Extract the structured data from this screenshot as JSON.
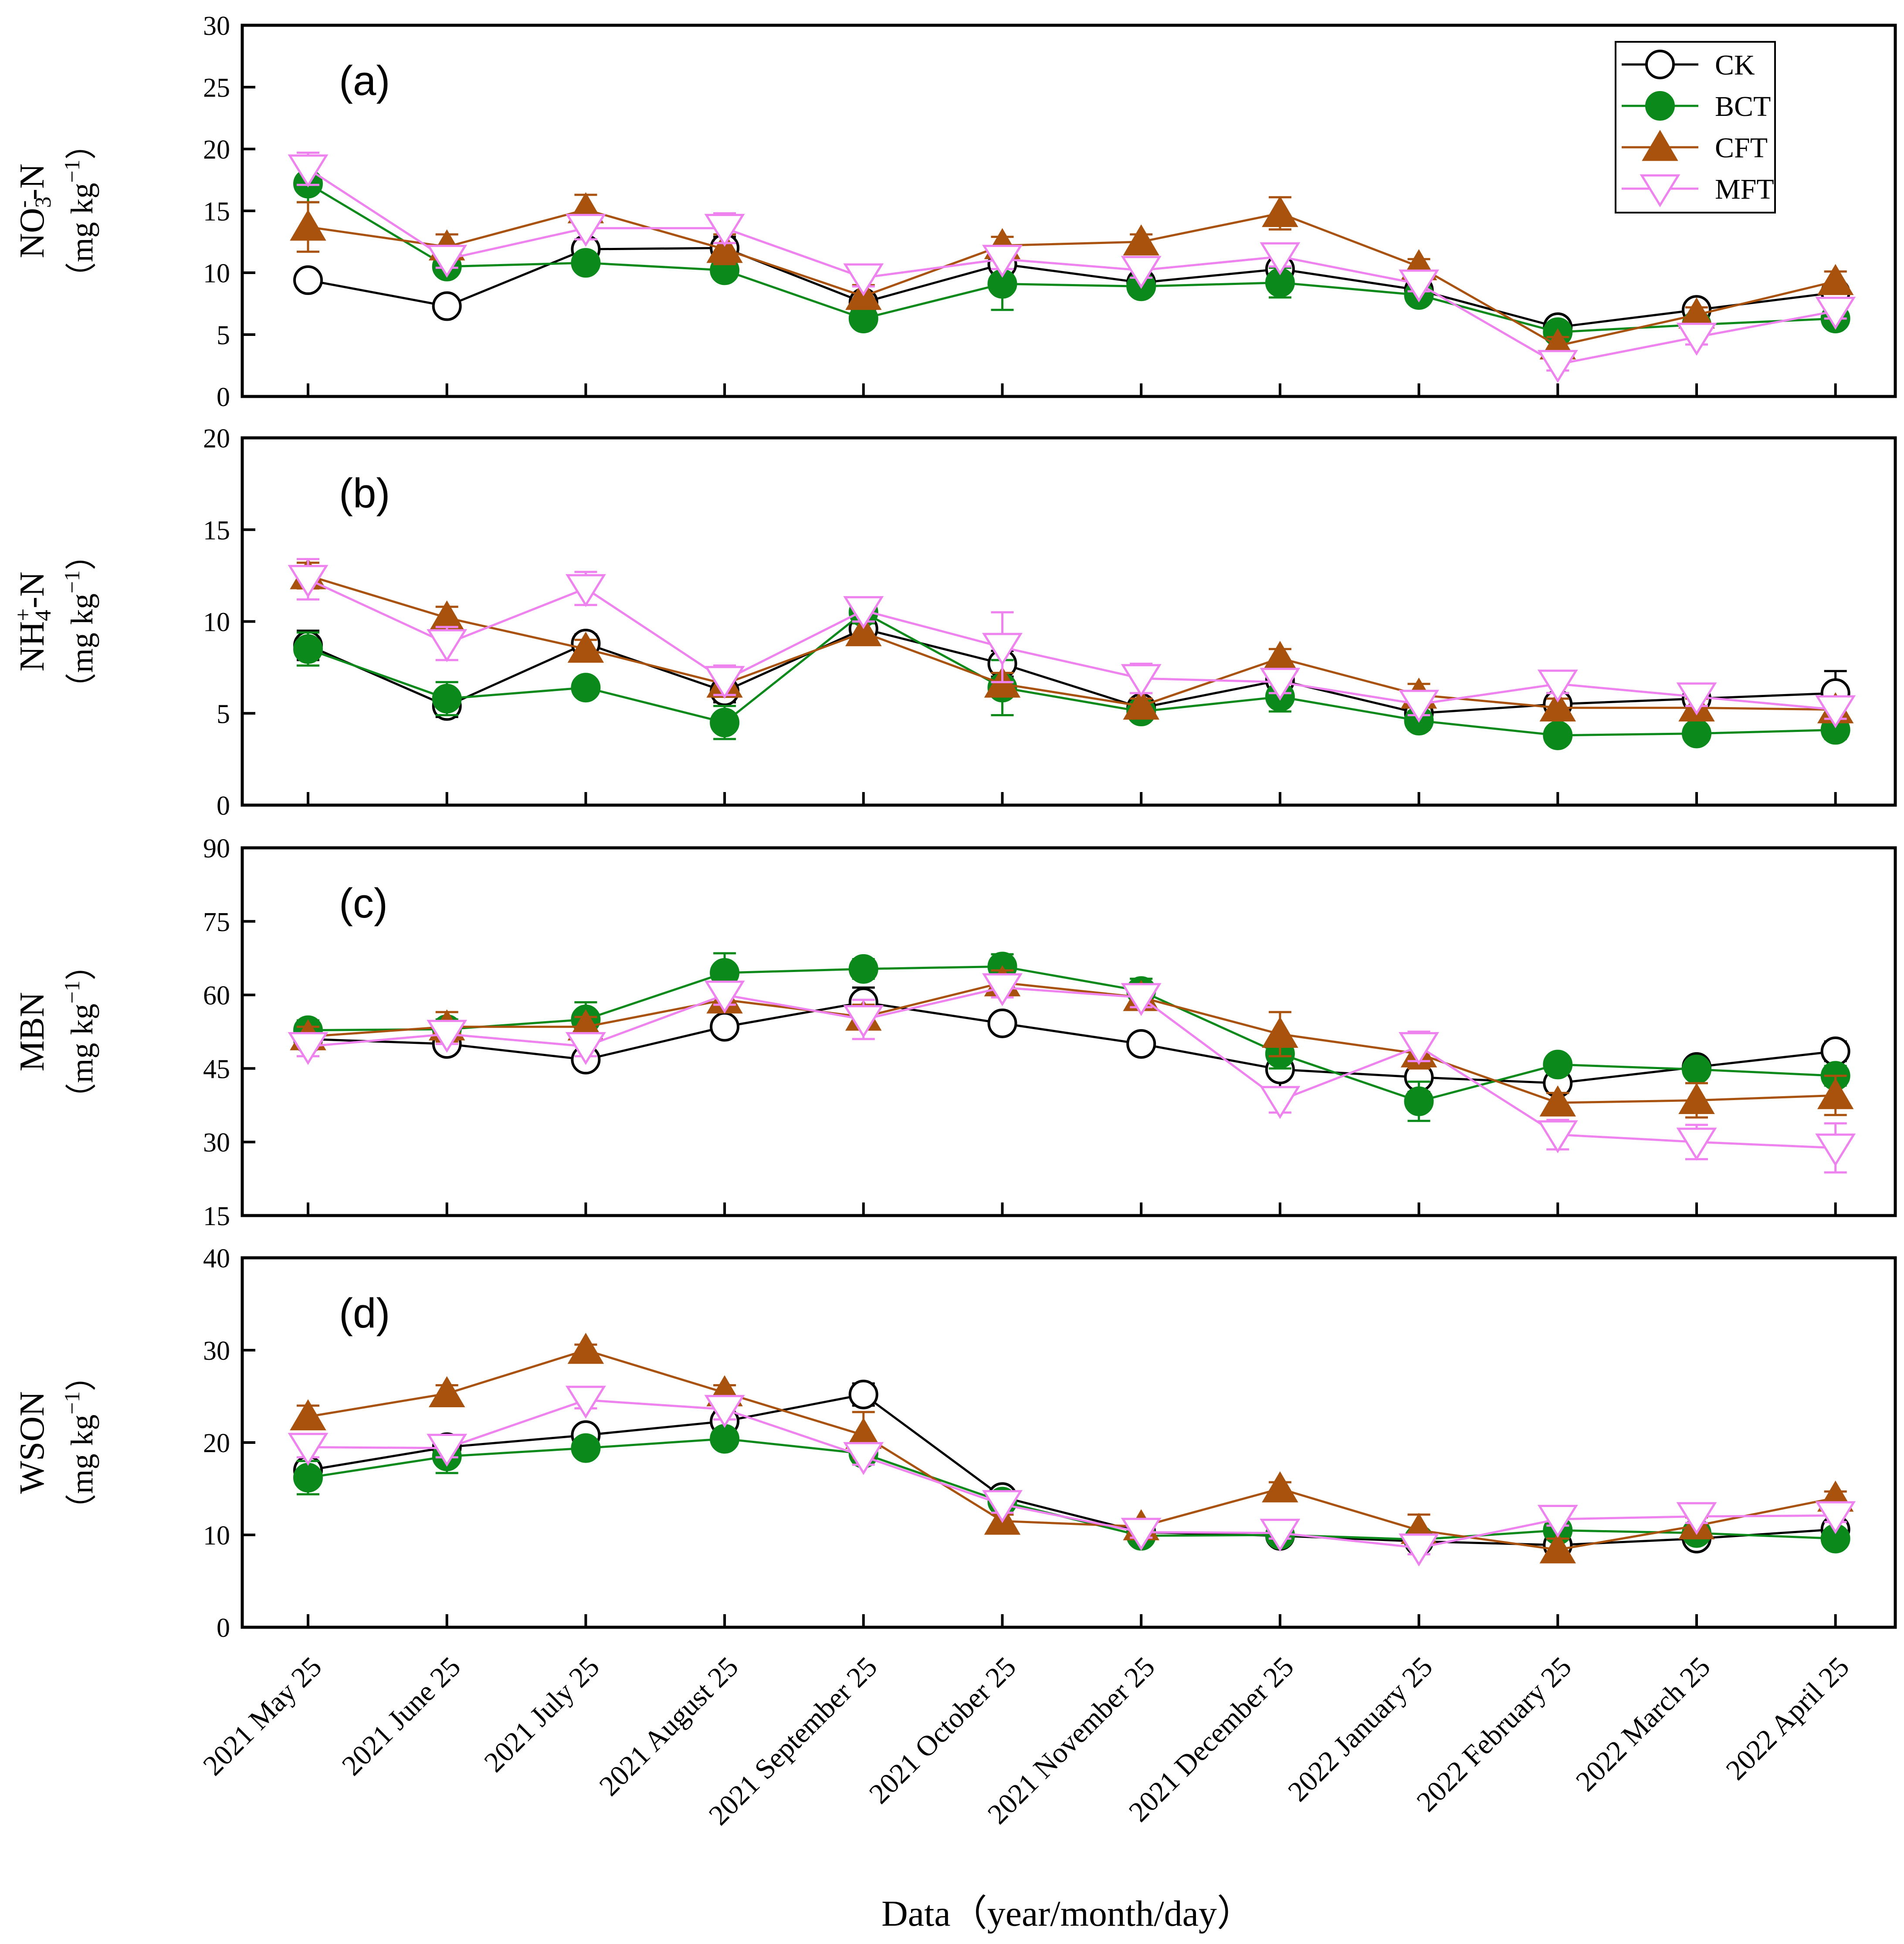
{
  "chart_data": {
    "type": "line",
    "xlabel": "Data（year/month/day）",
    "categories": [
      "2021 May 25",
      "2021 June 25",
      "2021 July 25",
      "2021 August 25",
      "2021 September 25",
      "2021 October 25",
      "2021 November 25",
      "2021 December 25",
      "2022 January 25",
      "2022 February 25",
      "2022 March 25",
      "2022 April 25"
    ],
    "legend": {
      "position": "top-right of panel (a)",
      "entries": [
        {
          "name": "CK",
          "marker": "open-circle",
          "color": "#000000"
        },
        {
          "name": "BCT",
          "marker": "filled-circle",
          "color": "#0b8a1b"
        },
        {
          "name": "CFT",
          "marker": "filled-triangle-up",
          "color": "#a8520e"
        },
        {
          "name": "MFT",
          "marker": "open-triangle-down",
          "color": "#ee82ee"
        }
      ]
    },
    "panels": [
      {
        "label": "(a)",
        "ylabel": "NO₃⁻-N",
        "ylabel_parts": {
          "base": "NO",
          "sub": "3",
          "sup": "-",
          "tail": "-N"
        },
        "yunit_parts": {
          "open": "（mg kg",
          "sup": "−1",
          "close": "）"
        },
        "ylim": [
          0,
          30
        ],
        "yticks": [
          0,
          5,
          10,
          15,
          20,
          25,
          30
        ],
        "series": [
          {
            "name": "CK",
            "values": [
              9.4,
              7.3,
              11.9,
              12.0,
              7.6,
              10.7,
              9.2,
              10.3,
              8.6,
              5.6,
              7.0,
              8.4
            ],
            "errors": [
              0.6,
              0.5,
              0.8,
              0.9,
              0.6,
              0.8,
              0.5,
              0.7,
              0.5,
              0.5,
              0.5,
              0.6
            ]
          },
          {
            "name": "BCT",
            "values": [
              17.2,
              10.5,
              10.8,
              10.2,
              6.3,
              9.1,
              8.9,
              9.2,
              8.2,
              5.2,
              5.8,
              6.3
            ],
            "errors": [
              1.5,
              0.7,
              0.6,
              0.7,
              0.5,
              2.1,
              0.6,
              1.2,
              0.5,
              0.5,
              0.5,
              0.5
            ]
          },
          {
            "name": "CFT",
            "values": [
              13.7,
              12.1,
              15.1,
              11.9,
              8.1,
              12.2,
              12.5,
              14.8,
              10.5,
              4.1,
              6.6,
              9.3
            ],
            "errors": [
              2.0,
              1.0,
              1.2,
              1.2,
              0.9,
              0.7,
              0.6,
              1.3,
              0.6,
              0.7,
              0.6,
              0.8
            ]
          },
          {
            "name": "MFT",
            "values": [
              18.4,
              11.1,
              13.6,
              13.6,
              9.6,
              11.1,
              10.2,
              11.3,
              9.1,
              2.6,
              4.8,
              6.9
            ],
            "errors": [
              1.3,
              0.7,
              0.9,
              1.2,
              0.7,
              0.8,
              0.6,
              0.8,
              0.6,
              0.5,
              0.6,
              0.6
            ]
          }
        ]
      },
      {
        "label": "(b)",
        "ylabel": "NH₄⁺-N",
        "ylabel_parts": {
          "base": "NH",
          "sub": "4",
          "sup": "+",
          "tail": "-N"
        },
        "yunit_parts": {
          "open": "（mg kg",
          "sup": "−1",
          "close": "）"
        },
        "ylim": [
          0,
          20
        ],
        "yticks": [
          0,
          5,
          10,
          15,
          20
        ],
        "series": [
          {
            "name": "CK",
            "values": [
              8.7,
              5.4,
              8.8,
              6.2,
              9.6,
              7.7,
              5.3,
              6.8,
              5.0,
              5.5,
              5.8,
              6.1
            ],
            "errors": [
              0.8,
              0.6,
              0.5,
              0.6,
              0.6,
              0.7,
              0.4,
              0.6,
              0.5,
              0.6,
              0.8,
              1.2
            ]
          },
          {
            "name": "BCT",
            "values": [
              8.5,
              5.8,
              6.4,
              4.5,
              10.5,
              6.4,
              5.1,
              5.9,
              4.6,
              3.8,
              3.9,
              4.1
            ],
            "errors": [
              0.9,
              0.9,
              0.4,
              0.9,
              0.6,
              1.5,
              0.4,
              0.8,
              0.5,
              0.4,
              0.4,
              0.5
            ]
          },
          {
            "name": "CFT",
            "values": [
              12.5,
              10.2,
              8.5,
              6.6,
              9.4,
              6.6,
              5.4,
              8.0,
              6.0,
              5.3,
              5.3,
              5.2
            ],
            "errors": [
              0.7,
              0.6,
              0.5,
              0.7,
              0.6,
              0.6,
              0.4,
              0.5,
              0.6,
              0.5,
              0.5,
              0.5
            ]
          },
          {
            "name": "MFT",
            "values": [
              12.3,
              8.8,
              11.8,
              6.8,
              10.6,
              8.6,
              6.9,
              6.7,
              5.5,
              6.6,
              5.9,
              5.2
            ],
            "errors": [
              1.1,
              0.9,
              0.9,
              0.8,
              0.6,
              1.9,
              0.8,
              0.6,
              0.6,
              0.5,
              0.5,
              0.5
            ]
          }
        ]
      },
      {
        "label": "(c)",
        "ylabel": "MBN",
        "yunit_parts": {
          "open": "（mg kg",
          "sup": "−1",
          "close": "）"
        },
        "ylim": [
          15,
          90
        ],
        "yticks": [
          15,
          30,
          45,
          60,
          75,
          90
        ],
        "series": [
          {
            "name": "CK",
            "values": [
              51.0,
              50.0,
              46.8,
              53.5,
              58.5,
              54.2,
              50.0,
              44.8,
              43.2,
              42.0,
              45.3,
              48.5
            ],
            "errors": [
              2.0,
              1.5,
              1.5,
              1.5,
              3.0,
              1.5,
              1.5,
              4.0,
              3.0,
              2.0,
              1.5,
              2.0
            ]
          },
          {
            "name": "BCT",
            "values": [
              52.8,
              53.0,
              55.0,
              64.5,
              65.3,
              65.8,
              60.8,
              48.0,
              38.3,
              45.8,
              44.8,
              43.5
            ],
            "errors": [
              2.0,
              2.0,
              3.5,
              4.0,
              2.0,
              2.5,
              2.5,
              3.0,
              4.0,
              1.5,
              1.5,
              2.0
            ]
          },
          {
            "name": "CFT",
            "values": [
              51.5,
              53.5,
              53.5,
              59.0,
              55.5,
              62.5,
              59.5,
              52.0,
              48.0,
              38.0,
              38.5,
              39.5
            ],
            "errors": [
              2.0,
              3.0,
              2.0,
              2.0,
              2.5,
              2.5,
              2.0,
              4.5,
              3.0,
              2.0,
              3.5,
              4.0
            ]
          },
          {
            "name": "MFT",
            "values": [
              49.5,
              52.0,
              49.5,
              60.0,
              55.0,
              61.5,
              59.5,
              38.5,
              49.5,
              31.5,
              30.0,
              28.8
            ],
            "errors": [
              2.0,
              2.0,
              2.0,
              2.0,
              4.0,
              2.0,
              2.0,
              2.5,
              3.0,
              3.0,
              3.5,
              5.0
            ]
          }
        ]
      },
      {
        "label": "(d)",
        "ylabel": "WSON",
        "yunit_parts": {
          "open": "（mg kg",
          "sup": "−1",
          "close": "）"
        },
        "ylim": [
          0,
          40
        ],
        "yticks": [
          0,
          10,
          20,
          30,
          40
        ],
        "series": [
          {
            "name": "CK",
            "values": [
              17.0,
              19.5,
              20.8,
              22.3,
              25.2,
              14.1,
              10.3,
              9.9,
              9.3,
              8.9,
              9.6,
              10.6
            ],
            "errors": [
              1.0,
              1.0,
              0.7,
              1.0,
              1.2,
              0.8,
              0.7,
              0.6,
              0.8,
              0.6,
              0.7,
              0.8
            ]
          },
          {
            "name": "BCT",
            "values": [
              16.2,
              18.5,
              19.4,
              20.4,
              18.8,
              13.6,
              9.9,
              10.0,
              9.5,
              10.5,
              10.2,
              9.6
            ],
            "errors": [
              1.8,
              1.8,
              0.9,
              0.9,
              0.7,
              0.8,
              0.6,
              0.6,
              0.7,
              0.8,
              0.6,
              0.6
            ]
          },
          {
            "name": "CFT",
            "values": [
              22.8,
              25.3,
              30.0,
              25.4,
              20.8,
              11.5,
              10.9,
              15.0,
              10.5,
              8.4,
              11.0,
              14.0
            ],
            "errors": [
              1.2,
              0.9,
              0.6,
              0.8,
              2.5,
              0.7,
              0.6,
              0.7,
              1.7,
              1.2,
              0.9,
              0.7
            ]
          },
          {
            "name": "MFT",
            "values": [
              19.5,
              19.4,
              24.6,
              23.6,
              18.5,
              13.3,
              10.3,
              10.2,
              8.6,
              11.7,
              12.0,
              12.1
            ],
            "errors": [
              1.1,
              1.0,
              0.9,
              1.1,
              0.9,
              0.9,
              0.6,
              0.6,
              0.7,
              0.7,
              0.7,
              0.7
            ]
          }
        ]
      }
    ]
  }
}
